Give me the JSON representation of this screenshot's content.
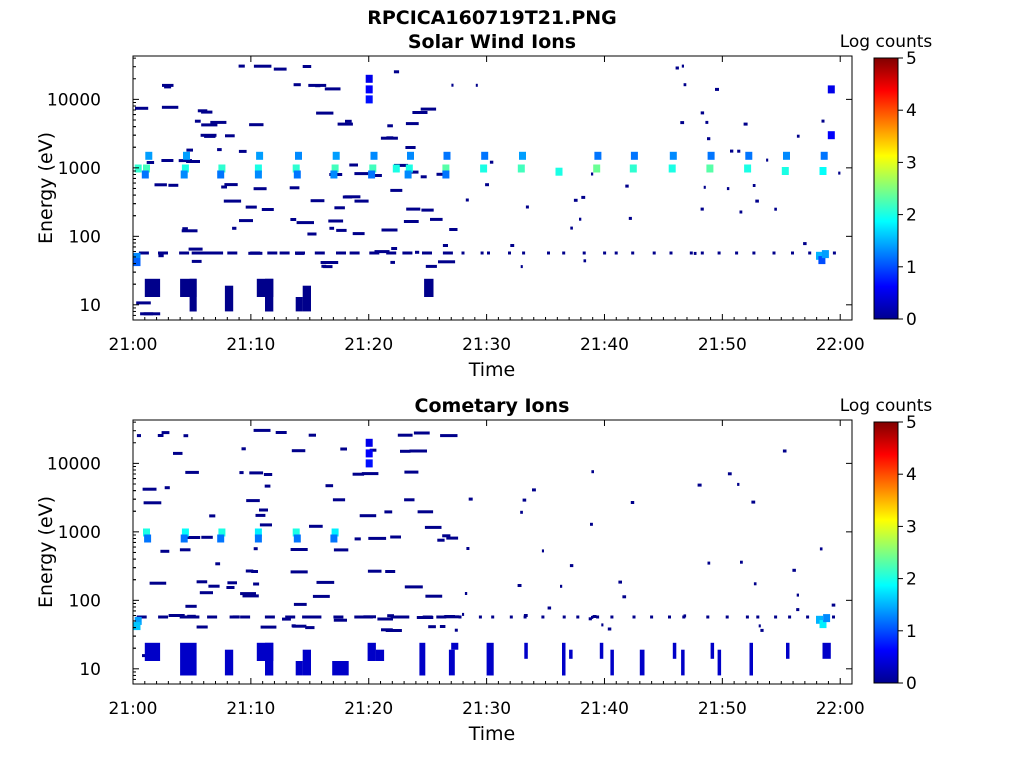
{
  "figure": {
    "filename": "RPCICA160719T21.PNG"
  },
  "chart_data": [
    {
      "type": "heatmap",
      "title": "Solar Wind Ions",
      "xlabel": "Time",
      "ylabel": "Energy (eV)",
      "x_ticks": [
        "21:00",
        "21:10",
        "21:20",
        "21:30",
        "21:40",
        "21:50",
        "22:00"
      ],
      "x_range_minutes": [
        0,
        61
      ],
      "y_scale": "log",
      "y_ticks": [
        10,
        100,
        1000,
        10000
      ],
      "y_tick_labels": [
        "10",
        "100",
        "1000",
        "10000"
      ],
      "y_range_ev": [
        6,
        43000
      ],
      "colorbar": {
        "label": "Log counts",
        "range": [
          0,
          5
        ],
        "ticks": [
          "0",
          "1",
          "2",
          "3",
          "4",
          "5"
        ],
        "colormap": "jet"
      },
      "grid": false,
      "cells": [
        {
          "t": 0.4,
          "e": 980,
          "v": 2.1
        },
        {
          "t": 1.1,
          "e": 980,
          "v": 2.2
        },
        {
          "t": 4.4,
          "e": 980,
          "v": 2.0
        },
        {
          "t": 7.5,
          "e": 980,
          "v": 2.1
        },
        {
          "t": 10.6,
          "e": 980,
          "v": 2.0
        },
        {
          "t": 13.8,
          "e": 980,
          "v": 2.1
        },
        {
          "t": 17.1,
          "e": 980,
          "v": 2.2
        },
        {
          "t": 20.3,
          "e": 980,
          "v": 2.2
        },
        {
          "t": 22.3,
          "e": 980,
          "v": 2.0
        },
        {
          "t": 23.4,
          "e": 980,
          "v": 2.0
        },
        {
          "t": 26.5,
          "e": 980,
          "v": 2.3
        },
        {
          "t": 29.7,
          "e": 980,
          "v": 2.0
        },
        {
          "t": 32.9,
          "e": 980,
          "v": 2.2
        },
        {
          "t": 36.1,
          "e": 880,
          "v": 2.0
        },
        {
          "t": 39.3,
          "e": 980,
          "v": 2.4
        },
        {
          "t": 42.4,
          "e": 980,
          "v": 2.1
        },
        {
          "t": 45.7,
          "e": 980,
          "v": 2.0
        },
        {
          "t": 48.9,
          "e": 980,
          "v": 2.3
        },
        {
          "t": 52.1,
          "e": 980,
          "v": 2.0
        },
        {
          "t": 55.3,
          "e": 900,
          "v": 2.0
        },
        {
          "t": 58.5,
          "e": 900,
          "v": 1.9
        },
        {
          "t": 1.0,
          "e": 800,
          "v": 1.2
        },
        {
          "t": 4.3,
          "e": 800,
          "v": 1.3
        },
        {
          "t": 7.4,
          "e": 800,
          "v": 1.2
        },
        {
          "t": 10.6,
          "e": 800,
          "v": 1.3
        },
        {
          "t": 13.9,
          "e": 800,
          "v": 1.2
        },
        {
          "t": 17.0,
          "e": 800,
          "v": 1.3
        },
        {
          "t": 20.2,
          "e": 800,
          "v": 1.2
        },
        {
          "t": 23.3,
          "e": 800,
          "v": 1.3
        },
        {
          "t": 26.5,
          "e": 800,
          "v": 1.2
        },
        {
          "t": 1.3,
          "e": 1500,
          "v": 1.4
        },
        {
          "t": 4.5,
          "e": 1500,
          "v": 1.4
        },
        {
          "t": 10.7,
          "e": 1500,
          "v": 1.4
        },
        {
          "t": 14.0,
          "e": 1500,
          "v": 1.3
        },
        {
          "t": 17.2,
          "e": 1500,
          "v": 1.4
        },
        {
          "t": 20.4,
          "e": 1500,
          "v": 1.3
        },
        {
          "t": 23.5,
          "e": 1500,
          "v": 1.3
        },
        {
          "t": 26.6,
          "e": 1500,
          "v": 1.2
        },
        {
          "t": 29.8,
          "e": 1500,
          "v": 1.2
        },
        {
          "t": 33.0,
          "e": 1500,
          "v": 1.4
        },
        {
          "t": 39.4,
          "e": 1500,
          "v": 1.2
        },
        {
          "t": 42.5,
          "e": 1500,
          "v": 1.2
        },
        {
          "t": 45.8,
          "e": 1500,
          "v": 1.3
        },
        {
          "t": 49.0,
          "e": 1500,
          "v": 1.2
        },
        {
          "t": 52.2,
          "e": 1500,
          "v": 1.2
        },
        {
          "t": 55.4,
          "e": 1500,
          "v": 1.3
        },
        {
          "t": 58.6,
          "e": 1500,
          "v": 1.2
        },
        {
          "t": 20.0,
          "e": 10000,
          "v": 0.7
        },
        {
          "t": 20.0,
          "e": 14000,
          "v": 0.6
        },
        {
          "t": 20.0,
          "e": 20000,
          "v": 0.5
        },
        {
          "t": 0.3,
          "e": 50,
          "v": 1.3
        },
        {
          "t": 0.3,
          "e": 42,
          "v": 1.1
        },
        {
          "t": 58.2,
          "e": 52,
          "v": 1.5
        },
        {
          "t": 58.4,
          "e": 45,
          "v": 1.0
        },
        {
          "t": 58.7,
          "e": 55,
          "v": 1.4
        },
        {
          "t": 59.2,
          "e": 3000,
          "v": 0.6
        },
        {
          "t": 59.2,
          "e": 14000,
          "v": 0.5
        }
      ],
      "blocks": [
        {
          "t": 1.0,
          "t2": 2.3,
          "e": 13,
          "e2": 24
        },
        {
          "t": 4.0,
          "t2": 5.4,
          "e": 13,
          "e2": 24
        },
        {
          "t": 4.8,
          "t2": 5.4,
          "e": 8,
          "e2": 24
        },
        {
          "t": 7.8,
          "t2": 8.5,
          "e": 8,
          "e2": 19
        },
        {
          "t": 10.5,
          "t2": 11.9,
          "e": 13,
          "e2": 24
        },
        {
          "t": 11.2,
          "t2": 11.9,
          "e": 8,
          "e2": 24
        },
        {
          "t": 13.8,
          "t2": 14.4,
          "e": 8,
          "e2": 13
        },
        {
          "t": 14.4,
          "t2": 15.1,
          "e": 8,
          "e2": 19
        },
        {
          "t": 24.7,
          "t2": 25.5,
          "e": 13,
          "e2": 24
        }
      ]
    },
    {
      "type": "heatmap",
      "title": "Cometary Ions",
      "xlabel": "Time",
      "ylabel": "Energy (eV)",
      "x_ticks": [
        "21:00",
        "21:10",
        "21:20",
        "21:30",
        "21:40",
        "21:50",
        "22:00"
      ],
      "x_range_minutes": [
        0,
        61
      ],
      "y_scale": "log",
      "y_ticks": [
        10,
        100,
        1000,
        10000
      ],
      "y_tick_labels": [
        "10",
        "100",
        "1000",
        "10000"
      ],
      "y_range_ev": [
        6,
        43000
      ],
      "colorbar": {
        "label": "Log counts",
        "range": [
          0,
          5
        ],
        "ticks": [
          "0",
          "1",
          "2",
          "3",
          "4",
          "5"
        ],
        "colormap": "jet"
      },
      "grid": false,
      "cells": [
        {
          "t": 1.1,
          "e": 980,
          "v": 2.0
        },
        {
          "t": 4.4,
          "e": 980,
          "v": 1.9
        },
        {
          "t": 7.5,
          "e": 980,
          "v": 2.0
        },
        {
          "t": 10.6,
          "e": 980,
          "v": 1.8
        },
        {
          "t": 13.8,
          "e": 980,
          "v": 2.0
        },
        {
          "t": 17.1,
          "e": 980,
          "v": 1.8
        },
        {
          "t": 0.4,
          "e": 50,
          "v": 1.4
        },
        {
          "t": 0.3,
          "e": 42,
          "v": 1.6
        },
        {
          "t": 58.2,
          "e": 52,
          "v": 1.5
        },
        {
          "t": 58.5,
          "e": 45,
          "v": 1.8
        },
        {
          "t": 58.8,
          "e": 55,
          "v": 1.3
        },
        {
          "t": 1.2,
          "e": 800,
          "v": 1.2
        },
        {
          "t": 4.3,
          "e": 800,
          "v": 1.2
        },
        {
          "t": 7.4,
          "e": 800,
          "v": 1.2
        },
        {
          "t": 10.6,
          "e": 800,
          "v": 1.2
        },
        {
          "t": 13.9,
          "e": 800,
          "v": 1.2
        },
        {
          "t": 17.0,
          "e": 800,
          "v": 1.2
        },
        {
          "t": 20.0,
          "e": 10000,
          "v": 0.7
        },
        {
          "t": 20.0,
          "e": 14000,
          "v": 0.6
        },
        {
          "t": 20.0,
          "e": 20000,
          "v": 0.5
        }
      ],
      "blocks": [
        {
          "t": 1.0,
          "t2": 2.3,
          "e": 13,
          "e2": 24
        },
        {
          "t": 4.0,
          "t2": 5.4,
          "e": 8,
          "e2": 24
        },
        {
          "t": 7.8,
          "t2": 8.5,
          "e": 8,
          "e2": 19
        },
        {
          "t": 10.5,
          "t2": 11.9,
          "e": 13,
          "e2": 24
        },
        {
          "t": 11.2,
          "t2": 11.9,
          "e": 8,
          "e2": 24
        },
        {
          "t": 13.8,
          "t2": 14.4,
          "e": 8,
          "e2": 13
        },
        {
          "t": 14.4,
          "t2": 15.1,
          "e": 8,
          "e2": 19
        },
        {
          "t": 16.9,
          "t2": 18.3,
          "e": 8,
          "e2": 13
        },
        {
          "t": 19.9,
          "t2": 20.6,
          "e": 13,
          "e2": 24
        },
        {
          "t": 20.6,
          "t2": 21.3,
          "e": 13,
          "e2": 19
        },
        {
          "t": 24.3,
          "t2": 24.8,
          "e": 8,
          "e2": 24
        },
        {
          "t": 26.8,
          "t2": 27.3,
          "e": 8,
          "e2": 19
        },
        {
          "t": 27.0,
          "t2": 27.6,
          "e": 19,
          "e2": 24
        },
        {
          "t": 30.0,
          "t2": 30.6,
          "e": 8,
          "e2": 24
        },
        {
          "t": 33.2,
          "t2": 33.5,
          "e": 14,
          "e2": 24
        },
        {
          "t": 36.4,
          "t2": 36.7,
          "e": 8,
          "e2": 24
        },
        {
          "t": 37.0,
          "t2": 37.3,
          "e": 14,
          "e2": 19
        },
        {
          "t": 39.6,
          "t2": 39.9,
          "e": 14,
          "e2": 24
        },
        {
          "t": 40.5,
          "t2": 40.8,
          "e": 8,
          "e2": 19
        },
        {
          "t": 43.0,
          "t2": 43.4,
          "e": 8,
          "e2": 19
        },
        {
          "t": 45.8,
          "t2": 46.1,
          "e": 14,
          "e2": 24
        },
        {
          "t": 46.5,
          "t2": 46.8,
          "e": 8,
          "e2": 19
        },
        {
          "t": 49.0,
          "t2": 49.3,
          "e": 14,
          "e2": 24
        },
        {
          "t": 49.6,
          "t2": 49.9,
          "e": 8,
          "e2": 19
        },
        {
          "t": 52.3,
          "t2": 52.6,
          "e": 8,
          "e2": 24
        },
        {
          "t": 55.4,
          "t2": 55.7,
          "e": 14,
          "e2": 24
        },
        {
          "t": 58.5,
          "t2": 59.2,
          "e": 14,
          "e2": 24
        }
      ]
    }
  ],
  "style": {
    "sparse_color": "#00008b",
    "ion_band_color": "#0000c8"
  }
}
